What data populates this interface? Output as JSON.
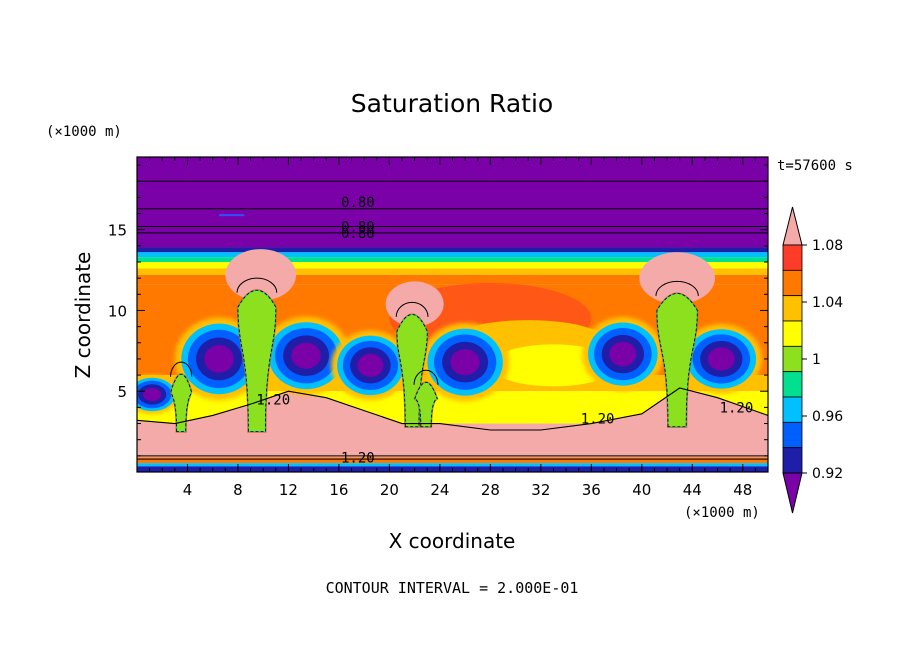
{
  "chart_data": {
    "type": "heatmap",
    "title": "Saturation Ratio",
    "xlabel": "X coordinate",
    "ylabel": "Z coordinate",
    "x_unit": "(×1000 m)",
    "y_unit": "(×1000 m)",
    "time_label": "t=57600 s",
    "footer": "CONTOUR INTERVAL = 2.000E-01",
    "xlim": [
      0,
      50
    ],
    "ylim": [
      0,
      19.5
    ],
    "x_ticks": [
      4,
      8,
      12,
      16,
      20,
      24,
      28,
      32,
      36,
      40,
      44,
      48
    ],
    "y_ticks": [
      5,
      10,
      15
    ],
    "colorbar": {
      "levels": [
        0.9,
        0.92,
        0.94,
        0.96,
        0.98,
        1.0,
        1.02,
        1.04,
        1.06,
        1.08,
        1.1
      ],
      "labels": [
        "0.92",
        "0.96",
        "1",
        "1.04",
        "1.08"
      ],
      "colors": [
        "#7a00a8",
        "#1e1ea8",
        "#0060ff",
        "#00c0ff",
        "#00e090",
        "#8ce01e",
        "#ffff00",
        "#ffc000",
        "#ff7800",
        "#ff3c28",
        "#f5aaaa"
      ],
      "extend": "both"
    },
    "contour_labels": [
      {
        "text": "0.80",
        "x": 17.5,
        "z": 16.7
      },
      {
        "text": "0.80",
        "x": 17.5,
        "z": 15.2
      },
      {
        "text": "0.80",
        "x": 17.5,
        "z": 14.8
      },
      {
        "text": "1.20",
        "x": 36.5,
        "z": 3.3
      },
      {
        "text": "1.20",
        "x": 47.5,
        "z": 4.0
      },
      {
        "text": "1.20",
        "x": 10.8,
        "z": 4.5
      },
      {
        "text": "1.20",
        "x": 17.5,
        "z": 0.9
      }
    ],
    "clouds": [
      {
        "x": 3.5,
        "base": 2.5,
        "top": 6.5,
        "width": 1.6
      },
      {
        "x": 9.5,
        "base": 2.5,
        "top": 11.7,
        "width": 3.0
      },
      {
        "x": 21.8,
        "base": 2.8,
        "top": 10.2,
        "width": 2.4
      },
      {
        "x": 22.9,
        "base": 2.8,
        "top": 6.0,
        "width": 1.8
      },
      {
        "x": 42.8,
        "base": 2.8,
        "top": 11.5,
        "width": 3.2
      }
    ]
  }
}
